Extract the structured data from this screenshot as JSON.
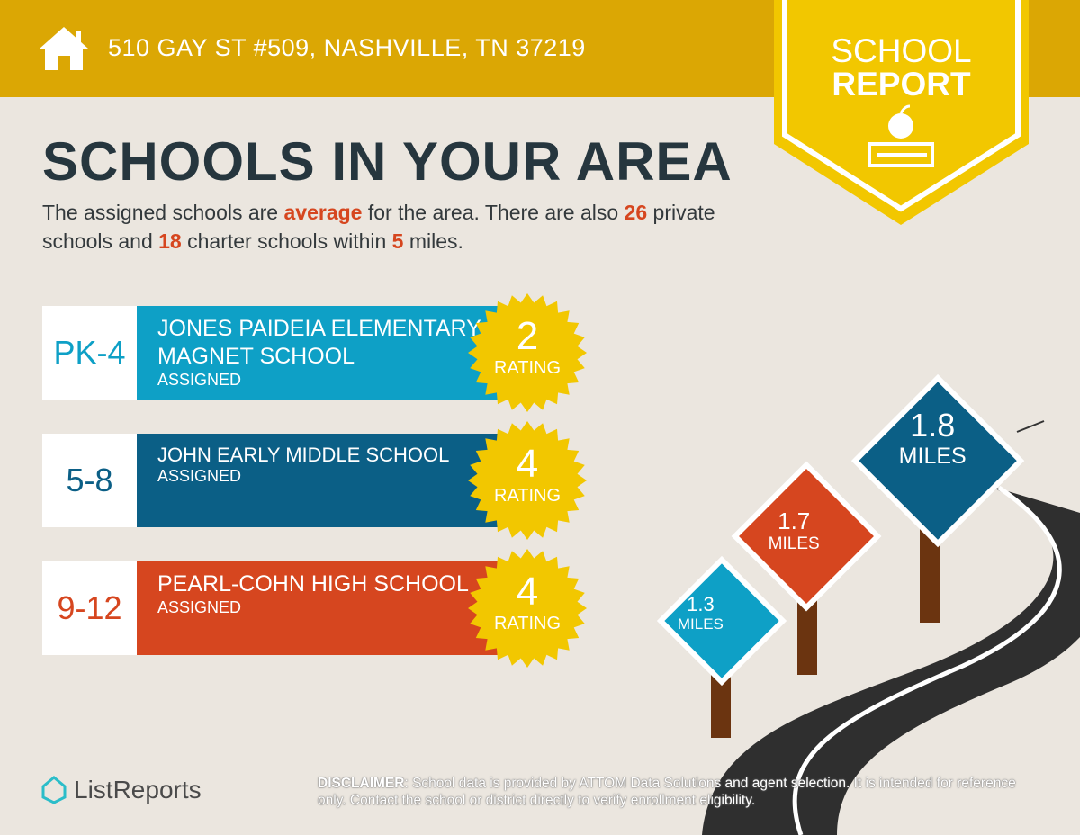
{
  "header": {
    "address": "510 GAY ST #509, NASHVILLE, TN 37219",
    "icon": "home-icon"
  },
  "badge": {
    "line1": "SCHOOL",
    "line2": "REPORT",
    "icon": "apple-book-icon"
  },
  "title": "SCHOOLS IN YOUR AREA",
  "description": {
    "p1": "The assigned schools are ",
    "rating_word": "average",
    "p2": " for the area. There are also ",
    "private_count": "26",
    "p3": " private schools and ",
    "charter_count": "18",
    "p4": " charter schools within ",
    "miles": "5",
    "p5": " miles."
  },
  "schools": [
    {
      "grades": "PK-4",
      "name": "Jones Paideia Elementary Magnet School",
      "status": "ASSIGNED",
      "rating": "2",
      "rating_label": "RATING",
      "color": "#0ea0c6",
      "distance": "1.3",
      "distance_unit": "MILES"
    },
    {
      "grades": "5-8",
      "name": "John Early Middle School",
      "status": "ASSIGNED",
      "rating": "4",
      "rating_label": "RATING",
      "color": "#0b5f86",
      "distance": "1.8",
      "distance_unit": "MILES"
    },
    {
      "grades": "9-12",
      "name": "Pearl-Cohn High School",
      "status": "ASSIGNED",
      "rating": "4",
      "rating_label": "RATING",
      "color": "#d6461f",
      "distance": "1.7",
      "distance_unit": "MILES"
    }
  ],
  "footer": {
    "logo": "ListReports",
    "disclaimer_label": "DISCLAIMER",
    "disclaimer": ": School data is provided by ATTOM Data Solutions and agent selection. It is intended for reference only. Contact the school or district directly to verify enrollment eligibility."
  },
  "colors": {
    "header": "#dba704",
    "badge": "#f2c700",
    "title": "#26363e",
    "highlight": "#d6461f"
  }
}
